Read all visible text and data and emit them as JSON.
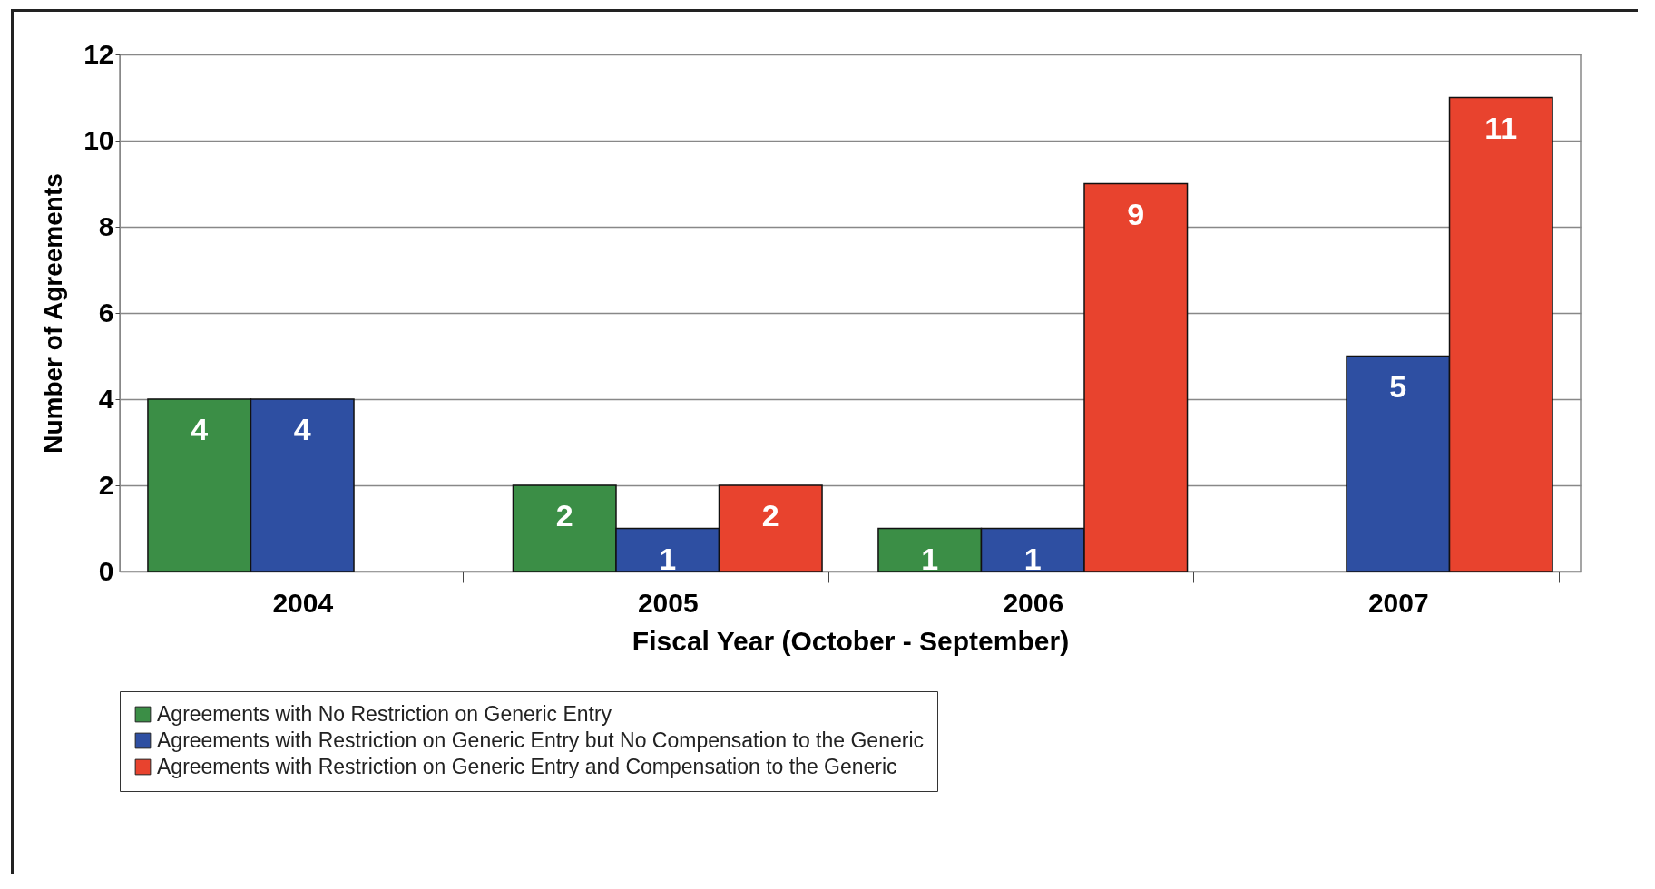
{
  "chart_data": {
    "type": "bar",
    "xlabel": "Fiscal Year (October - September)",
    "ylabel": "Number of Agreements",
    "categories": [
      "2004",
      "2005",
      "2006",
      "2007"
    ],
    "series": [
      {
        "name": "Agreements with No Restriction on Generic Entry",
        "color": "#3b8e46",
        "values": [
          4,
          2,
          1,
          null
        ]
      },
      {
        "name": "Agreements with Restriction on Generic Entry but No Compensation to the Generic",
        "color": "#2e4fa2",
        "values": [
          4,
          1,
          1,
          5
        ]
      },
      {
        "name": "Agreements with Restriction on Generic Entry and Compensation to the Generic",
        "color": "#e8432e",
        "values": [
          null,
          2,
          9,
          11
        ]
      }
    ],
    "ylim": [
      0,
      12
    ],
    "yticks": [
      0,
      2,
      4,
      6,
      8,
      10,
      12
    ],
    "grid": "y",
    "legend": "bottom",
    "data_labels": true
  }
}
